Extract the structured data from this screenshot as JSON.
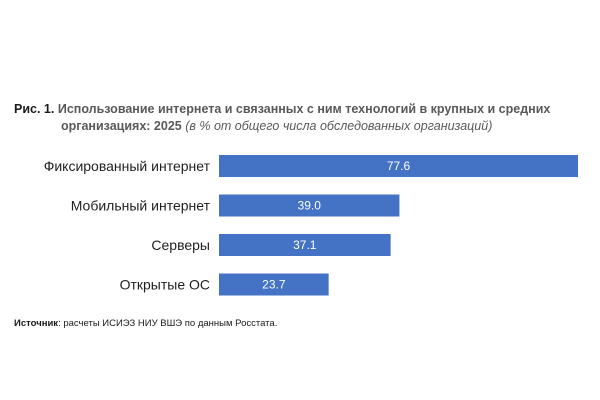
{
  "figure": {
    "number": "Рис. 1.",
    "title_line1": "Использование интернета и связанных с ним технологий в крупных и средних",
    "title_line2": "организациях: 2025",
    "title_note": "(в % от общего числа обследованных организаций)"
  },
  "source": {
    "label": "Источник",
    "text": ": расчеты ИСИЭЗ НИУ ВШЭ по данным Росстата."
  },
  "chart_data": {
    "type": "bar",
    "orientation": "horizontal",
    "categories": [
      "Фиксированный интернет",
      "Мобильный интернет",
      "Серверы",
      "Открытые ОС"
    ],
    "values": [
      77.6,
      39.0,
      37.1,
      23.7
    ],
    "value_labels": [
      "77.6",
      "39.0",
      "37.1",
      "23.7"
    ],
    "title": "Рис. 1. Использование интернета и связанных с ним технологий в крупных и средних организациях: 2025",
    "unit_note": "(в % от общего числа обследованных организаций)",
    "xlim": [
      0,
      77.6
    ],
    "grid": false,
    "legend": "none",
    "bar_color": "#4472c4"
  }
}
